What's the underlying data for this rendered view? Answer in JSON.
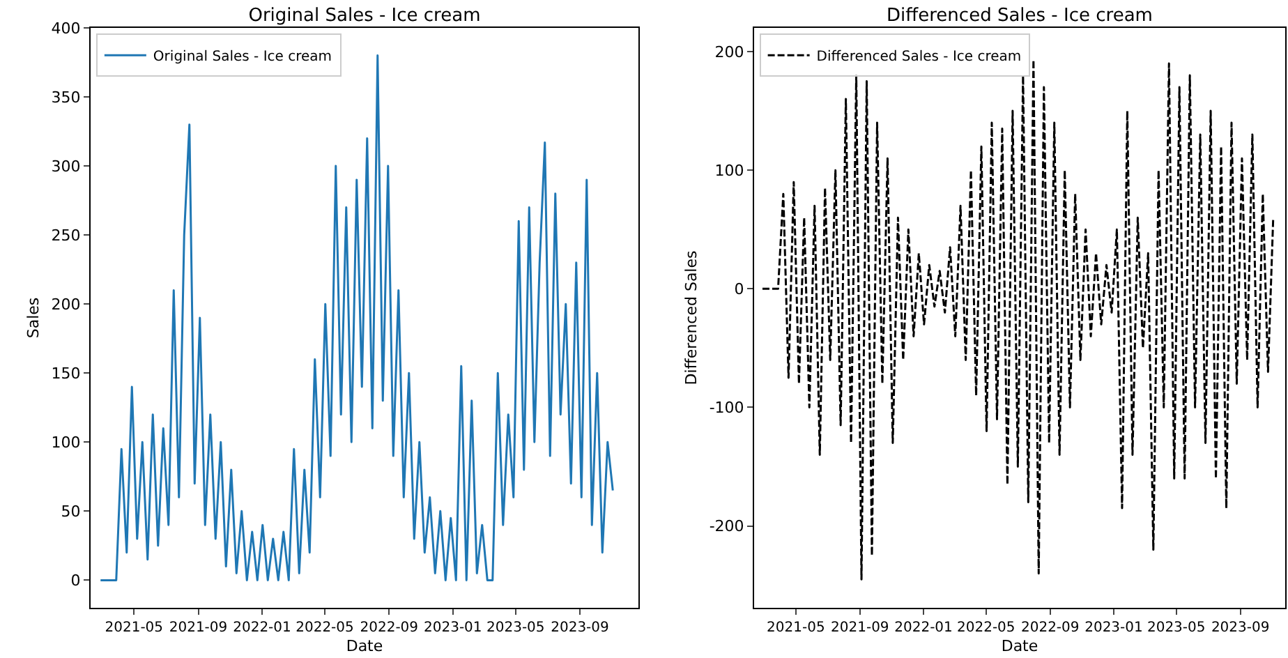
{
  "chart_data": [
    {
      "type": "line",
      "title": "Original Sales - Ice cream",
      "xlabel": "Date",
      "ylabel": "Sales",
      "legend": "top left",
      "line_style": "solid",
      "x": [
        "2021-02-26",
        "2021-03-08",
        "2021-03-18",
        "2021-03-28",
        "2021-04-07",
        "2021-04-17",
        "2021-04-27",
        "2021-05-07",
        "2021-05-17",
        "2021-05-27",
        "2021-06-06",
        "2021-06-16",
        "2021-06-26",
        "2021-07-06",
        "2021-07-16",
        "2021-07-26",
        "2021-08-05",
        "2021-08-15",
        "2021-08-25",
        "2021-09-04",
        "2021-09-14",
        "2021-09-24",
        "2021-10-04",
        "2021-10-14",
        "2021-10-24",
        "2021-11-03",
        "2021-11-13",
        "2021-11-23",
        "2021-12-03",
        "2021-12-13",
        "2021-12-23",
        "2022-01-02",
        "2022-01-12",
        "2022-01-22",
        "2022-02-01",
        "2022-02-11",
        "2022-02-21",
        "2022-03-03",
        "2022-03-13",
        "2022-03-23",
        "2022-04-02",
        "2022-04-12",
        "2022-04-22",
        "2022-05-02",
        "2022-05-12",
        "2022-05-22",
        "2022-06-01",
        "2022-06-11",
        "2022-06-21",
        "2022-07-01",
        "2022-07-11",
        "2022-07-21",
        "2022-07-31",
        "2022-08-10",
        "2022-08-20",
        "2022-08-30",
        "2022-09-09",
        "2022-09-19",
        "2022-09-29",
        "2022-10-09",
        "2022-10-19",
        "2022-10-29",
        "2022-11-08",
        "2022-11-18",
        "2022-11-28",
        "2022-12-08",
        "2022-12-18",
        "2022-12-28",
        "2023-01-07",
        "2023-01-17",
        "2023-01-27",
        "2023-02-06",
        "2023-02-16",
        "2023-02-26",
        "2023-03-08",
        "2023-03-18",
        "2023-03-28",
        "2023-04-07",
        "2023-04-17",
        "2023-04-27",
        "2023-05-07",
        "2023-05-17",
        "2023-05-27",
        "2023-06-06",
        "2023-06-16",
        "2023-06-26",
        "2023-07-06",
        "2023-07-16",
        "2023-07-26",
        "2023-08-05",
        "2023-08-15",
        "2023-08-25",
        "2023-09-04",
        "2023-09-14",
        "2023-09-24",
        "2023-10-04",
        "2023-10-14",
        "2023-10-24",
        "2023-11-03"
      ],
      "series": [
        {
          "name": "Original Sales - Ice cream",
          "color": "#1f77b4",
          "values": [
            0,
            0,
            0,
            0,
            95,
            20,
            140,
            30,
            100,
            15,
            120,
            25,
            110,
            40,
            210,
            60,
            250,
            330,
            70,
            190,
            40,
            120,
            30,
            100,
            10,
            80,
            5,
            50,
            0,
            35,
            0,
            40,
            0,
            30,
            0,
            35,
            0,
            95,
            5,
            80,
            20,
            160,
            60,
            200,
            90,
            300,
            120,
            270,
            100,
            290,
            140,
            320,
            110,
            380,
            130,
            300,
            90,
            210,
            60,
            150,
            30,
            100,
            20,
            60,
            5,
            50,
            0,
            45,
            0,
            155,
            0,
            130,
            5,
            40,
            0,
            0,
            150,
            40,
            120,
            60,
            260,
            80,
            270,
            100,
            230,
            317,
            90,
            280,
            120,
            200,
            70,
            230,
            60,
            290,
            40,
            150,
            20,
            100,
            65
          ]
        }
      ],
      "xlim": [
        "2021-02-07",
        "2023-12-22"
      ],
      "ylim": [
        -20,
        400
      ],
      "xticks": [
        "2021-05",
        "2021-09",
        "2022-01",
        "2022-05",
        "2022-09",
        "2023-01",
        "2023-05",
        "2023-09"
      ],
      "yticks": [
        0,
        50,
        100,
        150,
        200,
        250,
        300,
        350,
        400
      ]
    },
    {
      "type": "line",
      "title": "Differenced Sales - Ice cream",
      "xlabel": "Date",
      "ylabel": "Differenced Sales",
      "legend": "top left",
      "line_style": "dashed",
      "x": [
        "2021-02-26",
        "2021-03-08",
        "2021-03-18",
        "2021-03-28",
        "2021-04-07",
        "2021-04-17",
        "2021-04-27",
        "2021-05-07",
        "2021-05-17",
        "2021-05-27",
        "2021-06-06",
        "2021-06-16",
        "2021-06-26",
        "2021-07-06",
        "2021-07-16",
        "2021-07-26",
        "2021-08-05",
        "2021-08-15",
        "2021-08-25",
        "2021-09-04",
        "2021-09-14",
        "2021-09-24",
        "2021-10-04",
        "2021-10-14",
        "2021-10-24",
        "2021-11-03",
        "2021-11-13",
        "2021-11-23",
        "2021-12-03",
        "2021-12-13",
        "2021-12-23",
        "2022-01-02",
        "2022-01-12",
        "2022-01-22",
        "2022-02-01",
        "2022-02-11",
        "2022-02-21",
        "2022-03-03",
        "2022-03-13",
        "2022-03-23",
        "2022-04-02",
        "2022-04-12",
        "2022-04-22",
        "2022-05-02",
        "2022-05-12",
        "2022-05-22",
        "2022-06-01",
        "2022-06-11",
        "2022-06-21",
        "2022-07-01",
        "2022-07-11",
        "2022-07-21",
        "2022-07-31",
        "2022-08-10",
        "2022-08-20",
        "2022-08-30",
        "2022-09-09",
        "2022-09-19",
        "2022-09-29",
        "2022-10-09",
        "2022-10-19",
        "2022-10-29",
        "2022-11-08",
        "2022-11-18",
        "2022-11-28",
        "2022-12-08",
        "2022-12-18",
        "2022-12-28",
        "2023-01-07",
        "2023-01-17",
        "2023-01-27",
        "2023-02-06",
        "2023-02-16",
        "2023-02-26",
        "2023-03-08",
        "2023-03-18",
        "2023-03-28",
        "2023-04-07",
        "2023-04-17",
        "2023-04-27",
        "2023-05-07",
        "2023-05-17",
        "2023-05-27",
        "2023-06-06",
        "2023-06-16",
        "2023-06-26",
        "2023-07-06",
        "2023-07-16",
        "2023-07-26",
        "2023-08-05",
        "2023-08-15",
        "2023-08-25",
        "2023-09-04",
        "2023-09-14",
        "2023-09-24",
        "2023-10-04",
        "2023-10-14",
        "2023-10-24",
        "2023-11-03"
      ],
      "series": [
        {
          "name": "Differenced Sales - Ice cream",
          "color": "#000000",
          "values": [
            0,
            0,
            0,
            0,
            80,
            -75,
            90,
            -80,
            60,
            -100,
            70,
            -140,
            85,
            -60,
            100,
            -115,
            160,
            -130,
            180,
            -245,
            175,
            -225,
            140,
            -80,
            110,
            -130,
            60,
            -60,
            50,
            -40,
            30,
            -30,
            20,
            -15,
            15,
            -20,
            35,
            -40,
            70,
            -60,
            100,
            -90,
            120,
            -120,
            140,
            -110,
            135,
            -165,
            150,
            -150,
            180,
            -180,
            193,
            -240,
            170,
            -130,
            140,
            -140,
            100,
            -100,
            80,
            -60,
            50,
            -40,
            30,
            -30,
            20,
            -20,
            50,
            -185,
            150,
            -140,
            60,
            -50,
            30,
            -220,
            100,
            -100,
            190,
            -160,
            170,
            -160,
            180,
            -100,
            130,
            -130,
            150,
            -160,
            120,
            -185,
            140,
            -80,
            110,
            -60,
            130,
            -100,
            80,
            -70,
            60
          ]
        }
      ],
      "xlim": [
        "2021-02-10",
        "2023-11-26"
      ],
      "ylim": [
        -269,
        220
      ],
      "xticks": [
        "2021-05",
        "2021-09",
        "2022-01",
        "2022-05",
        "2022-09",
        "2023-01",
        "2023-05",
        "2023-09"
      ],
      "yticks": [
        -200,
        -100,
        0,
        100,
        200
      ]
    }
  ]
}
